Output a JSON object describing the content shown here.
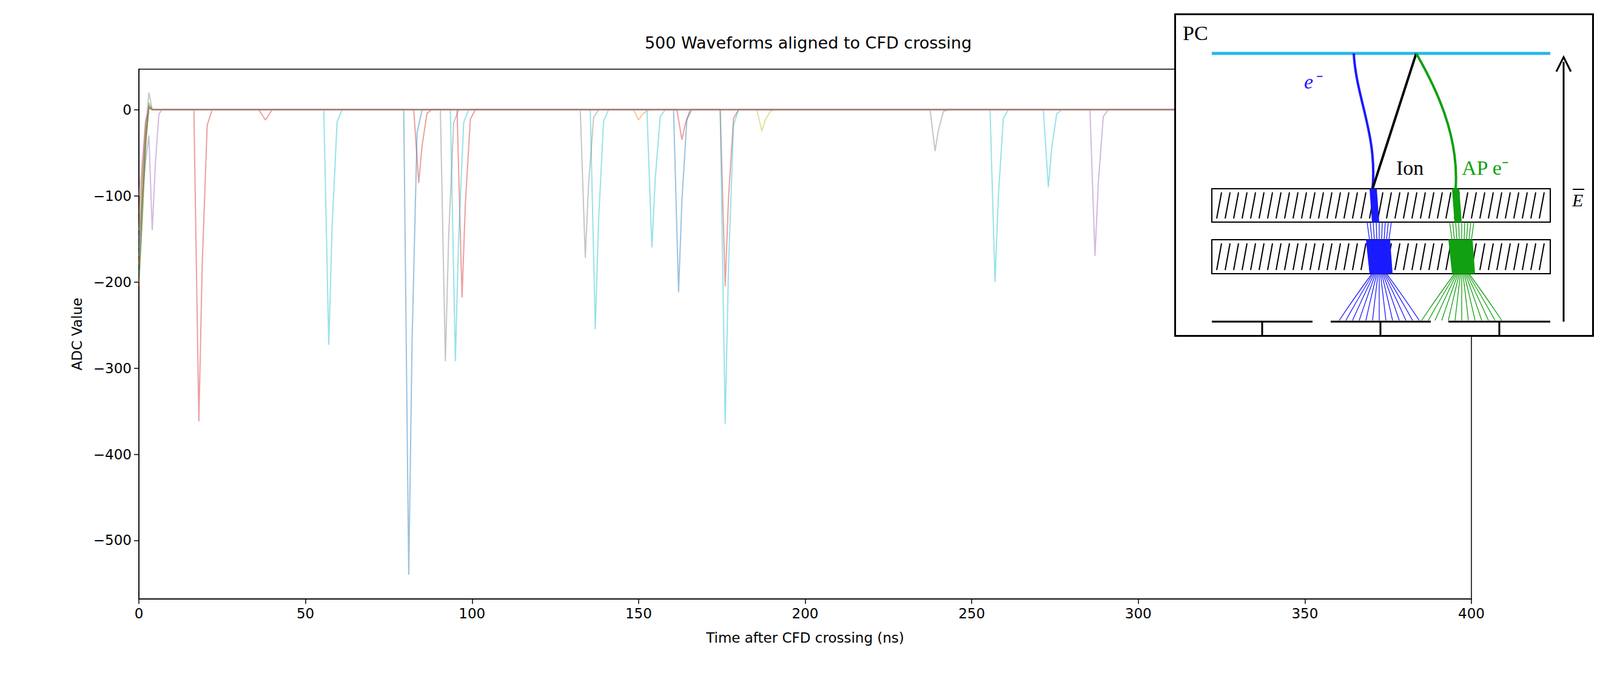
{
  "chart_data": {
    "type": "line",
    "title": "500 Waveforms aligned to CFD crossing",
    "x_label": "Time after CFD crossing (ns)",
    "y_label": "ADC Value",
    "xlim": [
      0,
      400
    ],
    "xticks": [
      0,
      50,
      100,
      150,
      200,
      250,
      300,
      350,
      400
    ],
    "ylim": [
      -568,
      47
    ],
    "yticks": [
      {
        "value": -500,
        "label": "−500"
      },
      {
        "value": -400,
        "label": "−400"
      },
      {
        "value": -300,
        "label": "−300"
      },
      {
        "value": -200,
        "label": "−200"
      },
      {
        "value": -100,
        "label": "−100"
      },
      0
    ],
    "grid": false,
    "series": [
      {
        "color": "#d62728",
        "x": [
          0,
          1,
          2,
          3,
          4,
          16.5,
          18,
          19,
          20.5,
          22,
          36,
          38,
          40,
          82.5,
          84,
          85,
          86.5,
          88,
          95.5,
          97,
          98,
          99.5,
          101,
          161.5,
          163,
          164,
          165.5,
          174.5,
          176,
          177,
          178.5,
          180,
          400
        ],
        "values": [
          -205,
          -120,
          -40,
          2,
          0,
          0,
          -362,
          -181,
          -18,
          0,
          0,
          -12,
          0,
          0,
          -85,
          -42,
          -4,
          0,
          0,
          -218,
          -109,
          -11,
          0,
          0,
          -35,
          -17,
          0,
          0,
          -205,
          -102,
          -10,
          0,
          0
        ]
      },
      {
        "color": "#17becf",
        "x": [
          0,
          1,
          2,
          3,
          4,
          55.5,
          57,
          58,
          59.5,
          61,
          93.5,
          95,
          96,
          97.5,
          99,
          135.5,
          137,
          138,
          139.5,
          141,
          152.5,
          154,
          155,
          156.5,
          158,
          174.5,
          176,
          177,
          178.5,
          180,
          255.5,
          257,
          258,
          259.5,
          261,
          271.5,
          273,
          274,
          275.5,
          277,
          400
        ],
        "values": [
          -170,
          -100,
          -30,
          3,
          0,
          0,
          -273,
          -136,
          -14,
          0,
          0,
          -292,
          -146,
          -15,
          0,
          0,
          -255,
          -128,
          -13,
          0,
          0,
          -160,
          -80,
          -8,
          0,
          0,
          -365,
          -182,
          -18,
          0,
          0,
          -200,
          -100,
          -10,
          0,
          0,
          -90,
          -45,
          -5,
          0,
          0
        ]
      },
      {
        "color": "#1f77b4",
        "x": [
          0,
          1,
          2,
          3,
          4,
          79.5,
          81,
          82,
          83.5,
          85,
          160.5,
          162,
          163,
          164.5,
          166,
          400
        ],
        "values": [
          -190,
          -110,
          -35,
          4,
          0,
          0,
          -540,
          -270,
          -27,
          0,
          0,
          -212,
          -106,
          -11,
          0,
          0
        ]
      },
      {
        "color": "#7f7f7f",
        "x": [
          0,
          1,
          2,
          3,
          4,
          90.5,
          92,
          93,
          94.5,
          96,
          132.5,
          134,
          135,
          136.5,
          138,
          237.5,
          239,
          240,
          241.5,
          243,
          400
        ],
        "values": [
          -160,
          -90,
          -25,
          20,
          0,
          0,
          -292,
          -146,
          -15,
          0,
          0,
          -172,
          -86,
          -9,
          0,
          0,
          -48,
          -24,
          -2,
          0,
          0
        ]
      },
      {
        "color": "#9467bd",
        "x": [
          0,
          1,
          2,
          3,
          4,
          5,
          6,
          7,
          285.5,
          287,
          288,
          289.5,
          291,
          400
        ],
        "values": [
          -150,
          -100,
          -60,
          -30,
          -140,
          -60,
          -5,
          0,
          0,
          -170,
          -85,
          -8,
          0,
          0
        ]
      },
      {
        "color": "#ff7f0e",
        "x": [
          0,
          1,
          2,
          3,
          4,
          148.5,
          150,
          151,
          152.5,
          154,
          400
        ],
        "values": [
          -180,
          -110,
          -30,
          5,
          0,
          0,
          -12,
          -6,
          -1,
          0,
          0
        ]
      },
      {
        "color": "#bcbd22",
        "x": [
          0,
          1,
          2,
          3,
          4,
          185.5,
          187,
          188,
          189.5,
          191,
          400
        ],
        "values": [
          -140,
          -80,
          -20,
          3,
          0,
          0,
          -25,
          -12,
          -2,
          0,
          0
        ]
      },
      {
        "color": "#2ca02c",
        "x": [
          0,
          1,
          2,
          3,
          4,
          400
        ],
        "values": [
          -200,
          -130,
          -45,
          8,
          0,
          0
        ]
      },
      {
        "color": "#8c564b",
        "x": [
          0,
          1,
          2,
          3,
          4,
          400
        ],
        "values": [
          -120,
          -70,
          -15,
          2,
          0,
          0
        ]
      },
      {
        "color": "#e377c2",
        "x": [
          0,
          1,
          2,
          3,
          4,
          400
        ],
        "values": [
          -100,
          -60,
          -12,
          2,
          0,
          0
        ]
      }
    ]
  },
  "inset": {
    "texts": {
      "photocathode": "PC",
      "electron": "e⁻",
      "ion": "Ion",
      "afterpulse": "AP e⁻",
      "field": "E"
    }
  }
}
